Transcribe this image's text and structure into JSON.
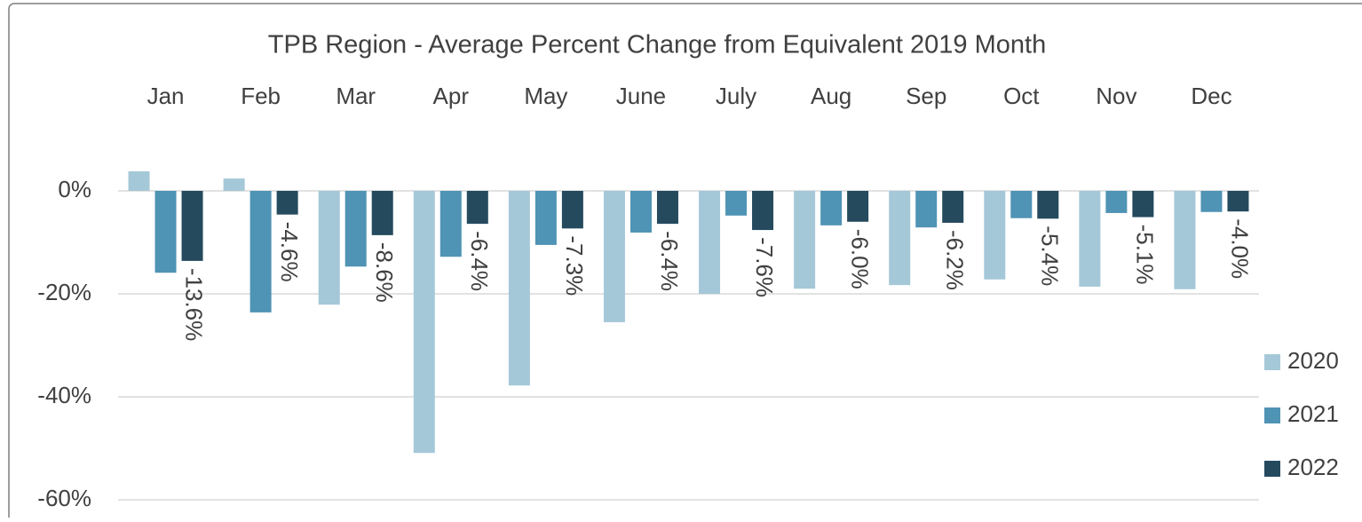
{
  "chart_data": {
    "type": "bar",
    "title": "TPB Region - Average Percent Change from Equivalent 2019 Month",
    "categories": [
      "Jan",
      "Feb",
      "Mar",
      "Apr",
      "May",
      "June",
      "July",
      "Aug",
      "Sep",
      "Oct",
      "Nov",
      "Dec"
    ],
    "series": [
      {
        "name": "2020",
        "color": "#a5c8d8",
        "values": [
          3.8,
          2.4,
          -22.1,
          -50.9,
          -37.8,
          -25.5,
          -20,
          -19,
          -18.3,
          -17.2,
          -18.6,
          -19.1
        ]
      },
      {
        "name": "2021",
        "color": "#4f93b5",
        "values": [
          -15.9,
          -23.6,
          -14.7,
          -12.8,
          -10.5,
          -8.1,
          -4.8,
          -6.7,
          -7.1,
          -5.3,
          -4.3,
          -4.1
        ]
      },
      {
        "name": "2022",
        "color": "#254a5e",
        "values": [
          -13.6,
          -4.6,
          -8.6,
          -6.4,
          -7.3,
          -6.4,
          -7.6,
          -6.0,
          -6.2,
          -5.4,
          -5.1,
          -4.0
        ],
        "value_labels": [
          "-13.6%",
          "-4.6%",
          "-8.6%",
          "-6.4%",
          "-7.3%",
          "-6.4%",
          "-7.6%",
          "-6.0%",
          "-6.2%",
          "-5.4%",
          "-5.1%",
          "-4.0%"
        ]
      }
    ],
    "ylim": [
      -60,
      20
    ],
    "yticks": [
      {
        "value": -60,
        "label": "-60%"
      },
      {
        "value": -40,
        "label": "-40%"
      },
      {
        "value": -20,
        "label": "-20%"
      },
      {
        "value": 0,
        "label": "0%"
      }
    ],
    "grid": true,
    "legend": "right"
  }
}
